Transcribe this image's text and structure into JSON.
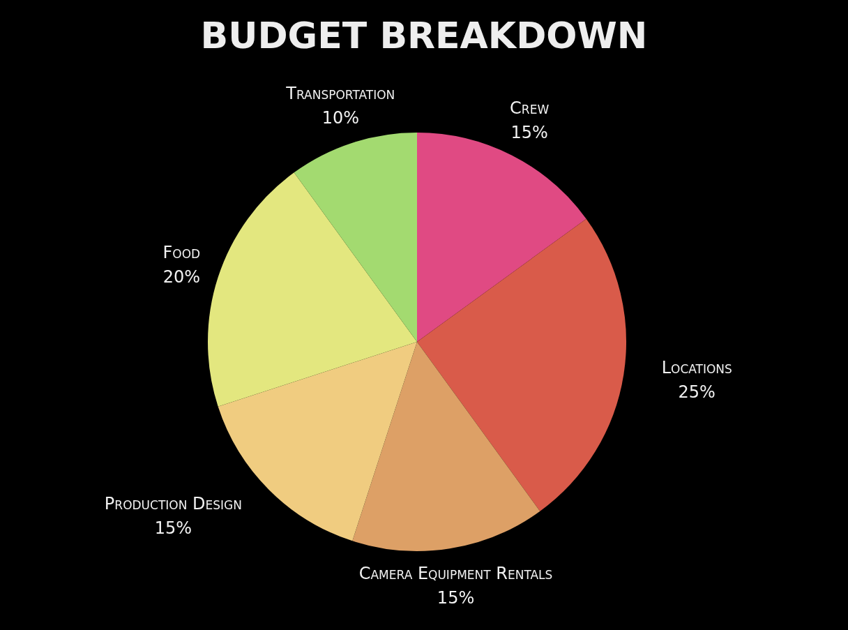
{
  "chart_data": {
    "type": "pie",
    "title": "BUDGET BREAKDOWN",
    "categories": [
      "Crew",
      "Locations",
      "Camera Equipment Rentals",
      "Production Design",
      "Food",
      "Transportation"
    ],
    "values": [
      15,
      25,
      15,
      15,
      20,
      10
    ],
    "colors": [
      "#e04a83",
      "#d95b4a",
      "#dda066",
      "#f0cc80",
      "#e3e77f",
      "#a3da70"
    ],
    "value_labels": [
      "15%",
      "25%",
      "15%",
      "15%",
      "20%",
      "10%"
    ]
  }
}
